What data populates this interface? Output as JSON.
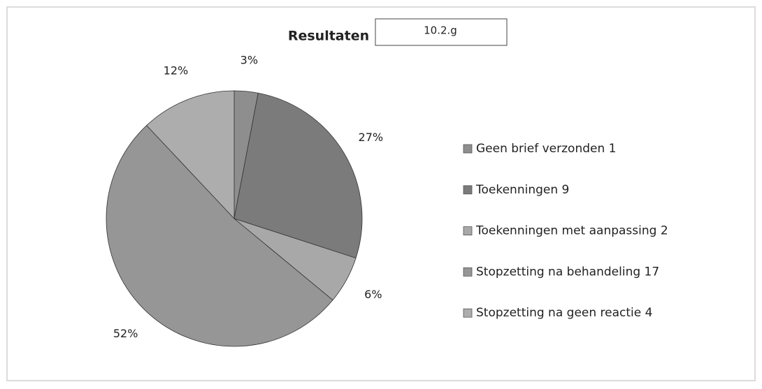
{
  "chart_data": {
    "type": "pie",
    "title": "Resultaten",
    "annotation": "10.2.g",
    "categories": [
      "Geen brief verzonden 1",
      "Toekenningen 9",
      "Toekenningen met aanpassing 2",
      "Stopzetting na behandeling 17",
      "Stopzetting na geen reactie 4"
    ],
    "values": [
      3,
      27,
      6,
      52,
      12
    ],
    "value_labels": [
      "3%",
      "27%",
      "6%",
      "52%",
      "12%"
    ],
    "colors": [
      "#8e8e8e",
      "#7b7b7b",
      "#a8a8a8",
      "#969696",
      "#adadad"
    ],
    "legend": "right"
  }
}
